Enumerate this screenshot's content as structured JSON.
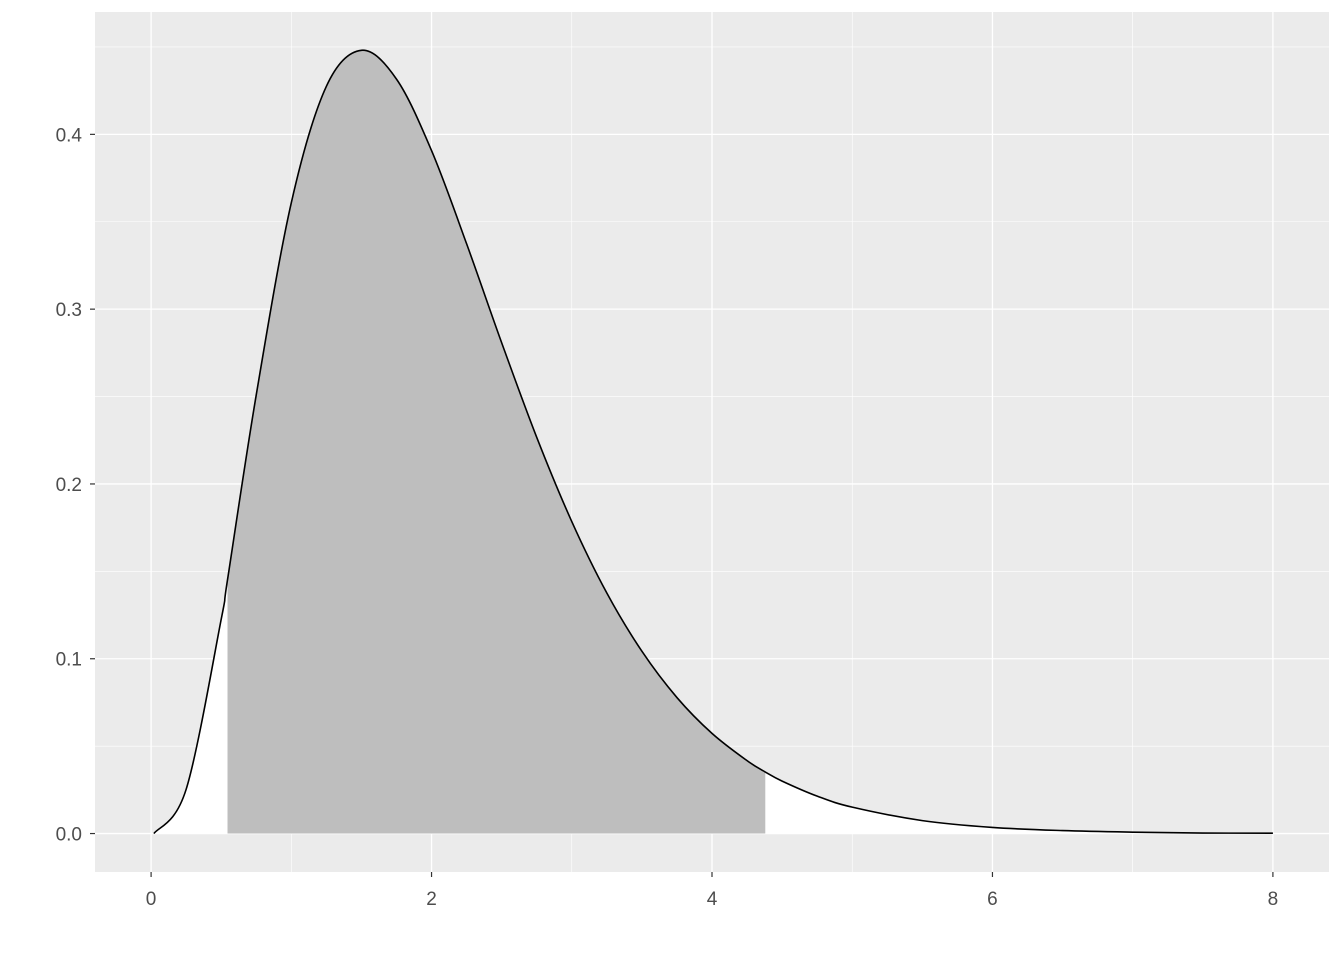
{
  "chart_data": {
    "type": "area",
    "title": "",
    "xlabel": "",
    "ylabel": "",
    "xlim": [
      -0.4,
      8.4
    ],
    "ylim": [
      -0.022,
      0.47
    ],
    "x_ticks": [
      0,
      2,
      4,
      6,
      8
    ],
    "x_tick_labels": [
      "0",
      "2",
      "4",
      "6",
      "8"
    ],
    "y_ticks": [
      0.0,
      0.1,
      0.2,
      0.3,
      0.4
    ],
    "y_tick_labels": [
      "0.0",
      "0.1",
      "0.2",
      "0.3",
      "0.4"
    ],
    "grid": true,
    "legend": "none",
    "curve": {
      "x": [
        0.02,
        0.25,
        0.5,
        0.545,
        0.75,
        1.0,
        1.25,
        1.5,
        1.75,
        2.0,
        2.25,
        2.5,
        2.75,
        3.0,
        3.25,
        3.5,
        3.75,
        4.0,
        4.25,
        4.38,
        4.5,
        4.75,
        5.0,
        5.5,
        6.0,
        6.5,
        7.0,
        7.5,
        8.0
      ],
      "y": [
        0.0,
        0.0253,
        0.1226,
        0.1452,
        0.251,
        0.3609,
        0.4275,
        0.4481,
        0.4316,
        0.3907,
        0.3374,
        0.2808,
        0.2267,
        0.1785,
        0.1376,
        0.1043,
        0.0778,
        0.0573,
        0.0417,
        0.0352,
        0.03,
        0.0214,
        0.0151,
        0.0074,
        0.0035,
        0.0017,
        0.0008,
        0.0003,
        0.0002
      ]
    },
    "shaded_region": {
      "x_from": 0.545,
      "x_to": 4.38
    },
    "colors": {
      "panel": "#EBEBEB",
      "grid": "#FFFFFF",
      "under_curve": "#FFFFFF",
      "shaded": "#BEBEBE",
      "line": "#000000"
    }
  }
}
